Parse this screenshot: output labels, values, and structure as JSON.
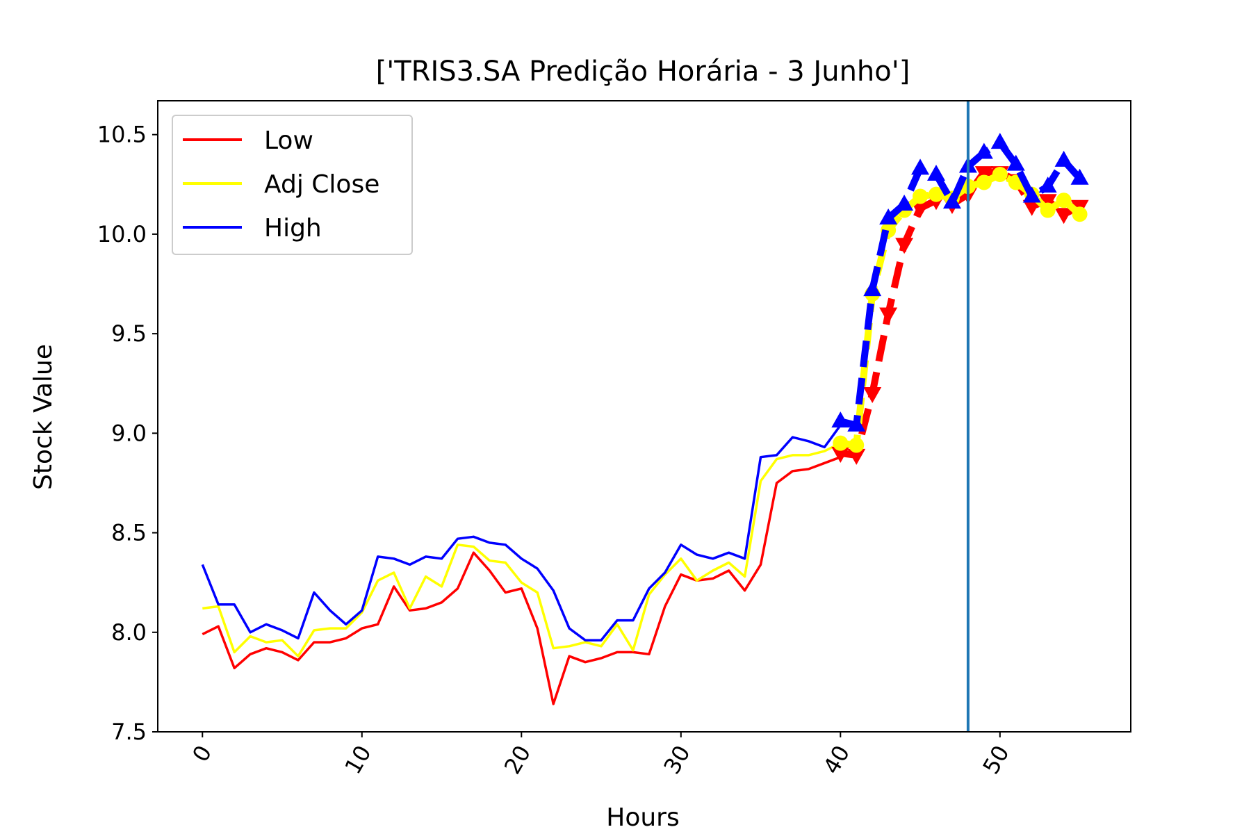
{
  "chart_data": {
    "type": "line",
    "title": "['TRIS3.SA Predição Horária - 3 Junho']",
    "xlabel": "Hours",
    "ylabel": "Stock Value",
    "xlim": [
      -2.8,
      58.2
    ],
    "ylim": [
      7.5,
      10.67
    ],
    "xticks": [
      0,
      10,
      20,
      30,
      40,
      50
    ],
    "yticks": [
      7.5,
      8.0,
      8.5,
      9.0,
      9.5,
      10.0,
      10.5
    ],
    "ytick_labels": [
      "7.5",
      "8.0",
      "8.5",
      "9.0",
      "9.5",
      "10.0",
      "10.5"
    ],
    "xtick_rotation": -60,
    "grid": false,
    "legend_position": "upper-left",
    "vline_x": 48,
    "colors": {
      "low": "#ff0000",
      "adj": "#ffff00",
      "high": "#0000ff",
      "vline": "#1f77b4"
    },
    "legend": [
      {
        "key": "low",
        "label": "Low"
      },
      {
        "key": "adj",
        "label": "Adj Close"
      },
      {
        "key": "high",
        "label": "High"
      }
    ],
    "series": [
      {
        "key": "low",
        "name": "Low",
        "x": [
          0,
          1,
          2,
          3,
          4,
          5,
          6,
          7,
          8,
          9,
          10,
          11,
          12,
          13,
          14,
          15,
          16,
          17,
          18,
          19,
          20,
          21,
          22,
          23,
          24,
          25,
          26,
          27,
          28,
          29,
          30,
          31,
          32,
          33,
          34,
          35,
          36,
          37,
          38,
          39,
          40
        ],
        "y": [
          7.99,
          8.03,
          7.82,
          7.89,
          7.92,
          7.9,
          7.86,
          7.95,
          7.95,
          7.97,
          8.02,
          8.04,
          8.23,
          8.11,
          8.12,
          8.15,
          8.22,
          8.4,
          8.31,
          8.2,
          8.22,
          8.02,
          7.64,
          7.88,
          7.85,
          7.87,
          7.9,
          7.9,
          7.89,
          8.13,
          8.29,
          8.26,
          8.27,
          8.31,
          8.21,
          8.34,
          8.75,
          8.81,
          8.82,
          8.85,
          8.88
        ]
      },
      {
        "key": "adj",
        "name": "Adj Close",
        "x": [
          0,
          1,
          2,
          3,
          4,
          5,
          6,
          7,
          8,
          9,
          10,
          11,
          12,
          13,
          14,
          15,
          16,
          17,
          18,
          19,
          20,
          21,
          22,
          23,
          24,
          25,
          26,
          27,
          28,
          29,
          30,
          31,
          32,
          33,
          34,
          35,
          36,
          37,
          38,
          39,
          40
        ],
        "y": [
          8.12,
          8.13,
          7.9,
          7.98,
          7.95,
          7.96,
          7.88,
          8.01,
          8.02,
          8.02,
          8.1,
          8.26,
          8.3,
          8.12,
          8.28,
          8.23,
          8.44,
          8.43,
          8.36,
          8.35,
          8.25,
          8.2,
          7.92,
          7.93,
          7.95,
          7.93,
          8.04,
          7.91,
          8.19,
          8.29,
          8.37,
          8.26,
          8.31,
          8.35,
          8.28,
          8.76,
          8.87,
          8.89,
          8.89,
          8.91,
          8.95
        ]
      },
      {
        "key": "high",
        "name": "High",
        "x": [
          0,
          1,
          2,
          3,
          4,
          5,
          6,
          7,
          8,
          9,
          10,
          11,
          12,
          13,
          14,
          15,
          16,
          17,
          18,
          19,
          20,
          21,
          22,
          23,
          24,
          25,
          26,
          27,
          28,
          29,
          30,
          31,
          32,
          33,
          34,
          35,
          36,
          37,
          38,
          39,
          40
        ],
        "y": [
          8.34,
          8.14,
          8.14,
          8.0,
          8.04,
          8.01,
          7.97,
          8.2,
          8.11,
          8.04,
          8.11,
          8.38,
          8.37,
          8.34,
          8.38,
          8.37,
          8.47,
          8.48,
          8.45,
          8.44,
          8.37,
          8.32,
          8.21,
          8.02,
          7.96,
          7.96,
          8.06,
          8.06,
          8.22,
          8.3,
          8.44,
          8.39,
          8.37,
          8.4,
          8.37,
          8.88,
          8.89,
          8.98,
          8.96,
          8.93,
          9.04
        ]
      }
    ],
    "predictions": [
      {
        "key": "low",
        "marker": "triangle-down",
        "x": [
          40,
          41,
          42,
          43,
          44,
          45,
          46,
          47,
          48,
          49,
          50,
          51,
          52,
          53,
          54,
          55
        ],
        "y": [
          8.9,
          8.89,
          9.2,
          9.6,
          9.95,
          10.13,
          10.17,
          10.15,
          10.2,
          10.31,
          10.31,
          10.27,
          10.14,
          10.17,
          10.1,
          10.14
        ]
      },
      {
        "key": "adj",
        "marker": "circle",
        "x": [
          40,
          41,
          42,
          43,
          44,
          45,
          46,
          47,
          48,
          49,
          50,
          51,
          52,
          53,
          54,
          55
        ],
        "y": [
          8.95,
          8.94,
          9.7,
          10.02,
          10.12,
          10.19,
          10.2,
          10.18,
          10.24,
          10.26,
          10.3,
          10.26,
          10.2,
          10.12,
          10.17,
          10.1
        ]
      },
      {
        "key": "high",
        "marker": "triangle-up",
        "x": [
          40,
          41,
          42,
          43,
          44,
          45,
          46,
          47,
          48,
          49,
          50,
          51,
          52,
          53,
          54,
          55
        ],
        "y": [
          9.06,
          9.04,
          9.72,
          10.08,
          10.15,
          10.33,
          10.3,
          10.16,
          10.34,
          10.41,
          10.46,
          10.35,
          10.19,
          10.24,
          10.37,
          10.28
        ]
      }
    ]
  }
}
